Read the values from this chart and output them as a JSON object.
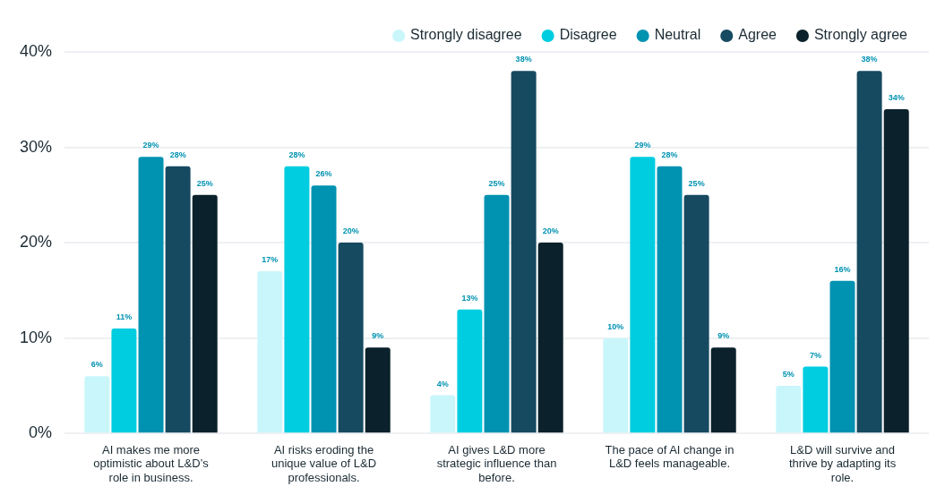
{
  "chart_data": {
    "type": "bar",
    "categories": [
      "AI makes me more optimistic about L&D’s role in business.",
      "AI risks eroding the unique value of L&D professionals.",
      "AI gives L&D more strategic influence than before.",
      "The pace of AI change in L&D feels manageable.",
      "L&D will survive and thrive by adapting its role."
    ],
    "series": [
      {
        "name": "Strongly disagree",
        "color": "#c9f6fb",
        "values": [
          6,
          17,
          4,
          10,
          5
        ],
        "value_labels": [
          "6%",
          "17%",
          "4%",
          "10%",
          "5%"
        ]
      },
      {
        "name": "Disagree",
        "color": "#00cde0",
        "values": [
          11,
          28,
          13,
          29,
          7
        ],
        "value_labels": [
          "11%",
          "28%",
          "13%",
          "29%",
          "7%"
        ]
      },
      {
        "name": "Neutral",
        "color": "#0092b1",
        "values": [
          29,
          26,
          25,
          28,
          16
        ],
        "value_labels": [
          "29%",
          "26%",
          "25%",
          "28%",
          "16%"
        ]
      },
      {
        "name": "Agree",
        "color": "#164a60",
        "values": [
          28,
          20,
          38,
          25,
          38
        ],
        "value_labels": [
          "28%",
          "20%",
          "38%",
          "25%",
          "38%"
        ]
      },
      {
        "name": "Strongly agree",
        "color": "#0b212b",
        "values": [
          25,
          9,
          20,
          9,
          34
        ],
        "value_labels": [
          "25%",
          "9%",
          "20%",
          "9%",
          "34%"
        ]
      }
    ],
    "ylim": [
      0,
      40
    ],
    "yticks": [
      {
        "value": 0,
        "label": "0%"
      },
      {
        "value": 10,
        "label": "10%"
      },
      {
        "value": 20,
        "label": "20%"
      },
      {
        "value": 30,
        "label": "30%"
      },
      {
        "value": 40,
        "label": "40%"
      }
    ],
    "grid": "y",
    "legend": "top right"
  }
}
